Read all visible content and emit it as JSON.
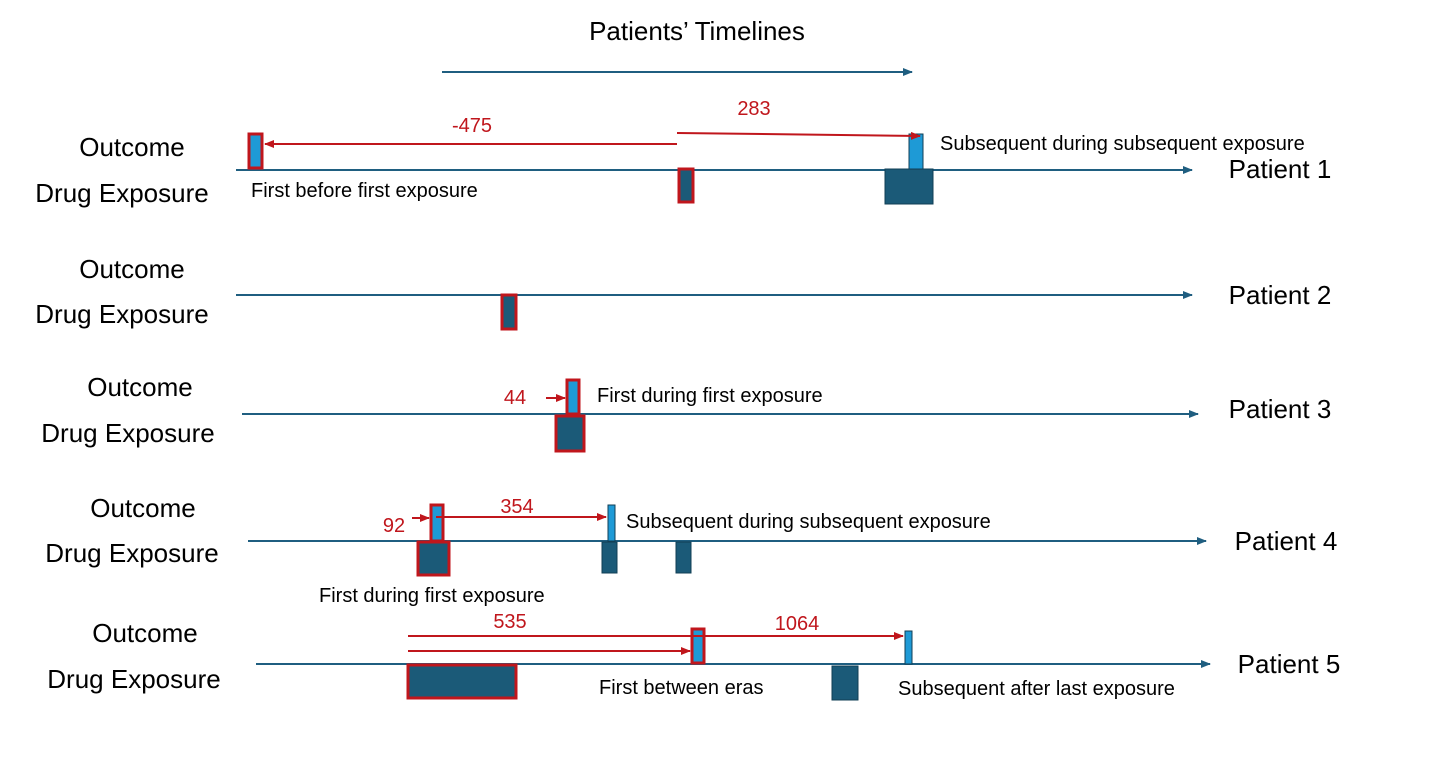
{
  "title": "Patients’ Timelines",
  "labels": {
    "outcome": "Outcome",
    "drug_exposure": "Drug Exposure"
  },
  "colors": {
    "timeline": "#1f5e80",
    "exposure_fill": "#1b5a78",
    "exposure_dark": "#123f55",
    "outcome_fill": "#1e9ad6",
    "highlight": "#c0161c",
    "annotation": "#c0161c",
    "text": "#000000"
  },
  "patients": [
    {
      "name": "Patient 1",
      "annotations": [
        "Subsequent during subsequent exposure",
        "First before first exposure"
      ],
      "intervals": [
        "-475",
        "283"
      ]
    },
    {
      "name": "Patient 2",
      "annotations": [],
      "intervals": []
    },
    {
      "name": "Patient 3",
      "annotations": [
        "First during first exposure"
      ],
      "intervals": [
        "44"
      ]
    },
    {
      "name": "Patient 4",
      "annotations": [
        "Subsequent during subsequent exposure",
        "First during first exposure"
      ],
      "intervals": [
        "92",
        "354"
      ]
    },
    {
      "name": "Patient 5",
      "annotations": [
        "First between eras",
        "Subsequent after last exposure"
      ],
      "intervals": [
        "535",
        "1064"
      ]
    }
  ]
}
